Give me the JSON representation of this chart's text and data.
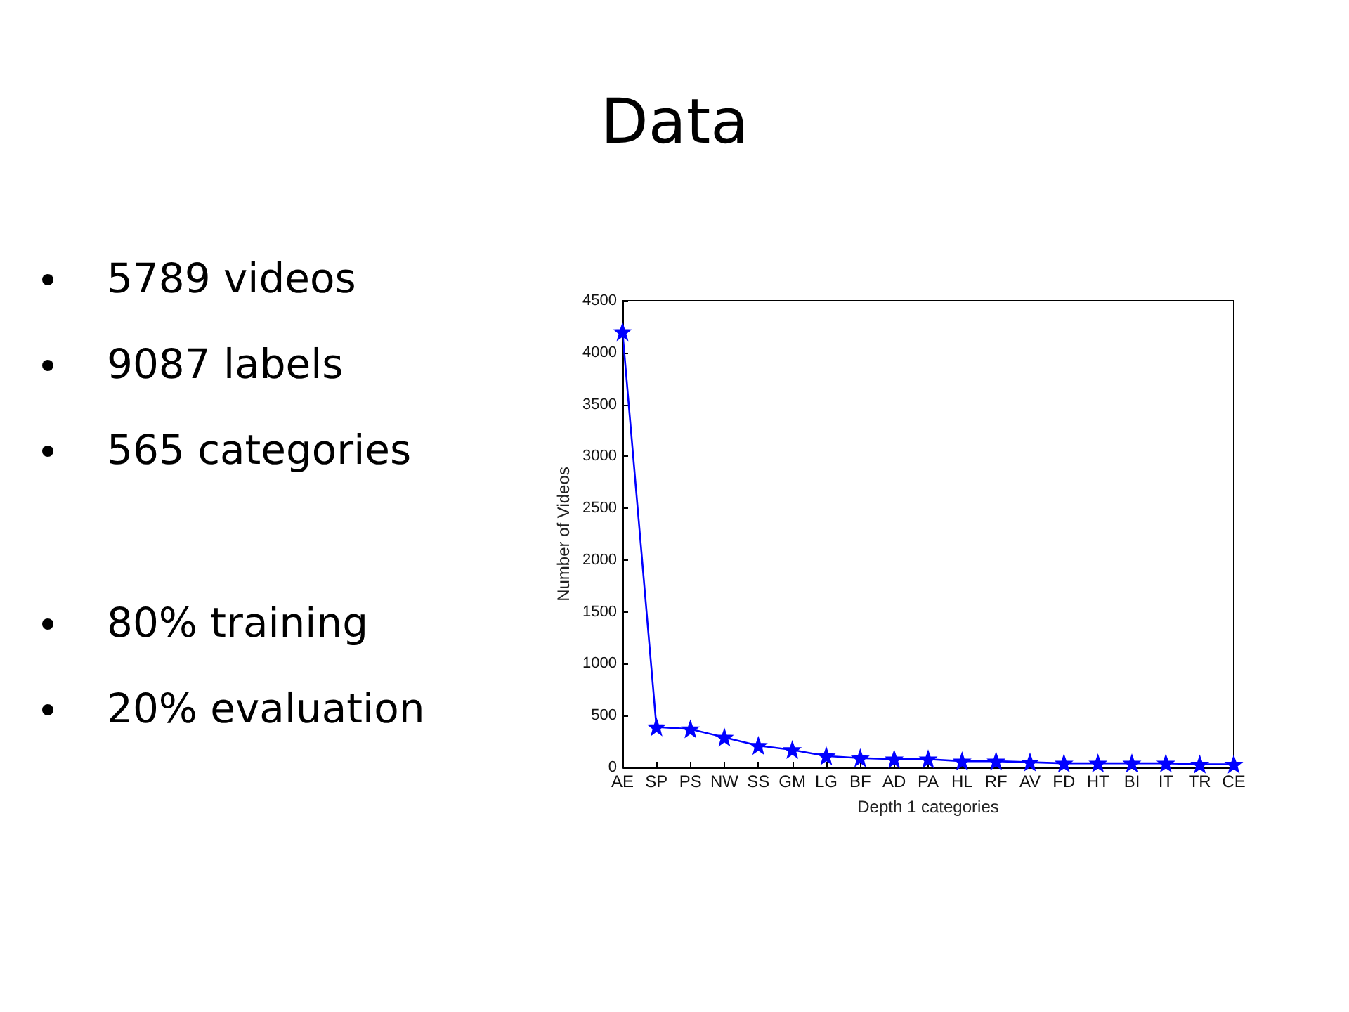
{
  "chart_data": {
    "type": "line",
    "title": "Data",
    "xlabel": "Depth 1 categories",
    "ylabel": "Number of Videos",
    "annotations": [
      "5789 videos",
      "9087 labels",
      "565 categories",
      "80% training",
      "20% evaluation"
    ],
    "categories": [
      "AE",
      "SP",
      "PS",
      "NW",
      "SS",
      "GM",
      "LG",
      "BF",
      "AD",
      "PA",
      "HL",
      "RF",
      "AV",
      "FD",
      "HT",
      "BI",
      "IT",
      "TR",
      "CE"
    ],
    "series": [
      {
        "color": "#0000ff",
        "values": [
          4200,
          390,
          370,
          290,
          210,
          170,
          110,
          90,
          80,
          80,
          60,
          60,
          50,
          40,
          40,
          40,
          40,
          30,
          30
        ]
      }
    ],
    "ylim": [
      0,
      4500
    ],
    "yticks": [
      0,
      500,
      1000,
      1500,
      2000,
      2500,
      3000,
      3500,
      4000,
      4500
    ],
    "grid": false,
    "marker": "star",
    "line_style": "solid"
  }
}
